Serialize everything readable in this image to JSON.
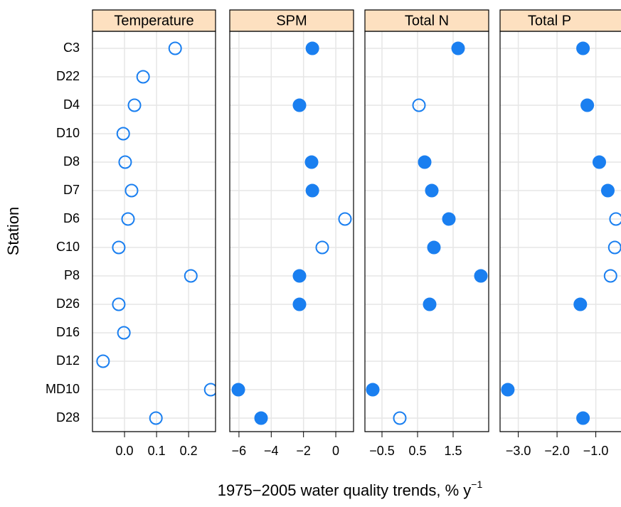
{
  "axis_labels": {
    "x": "1975−2005 water quality trends, % y",
    "x_sup": "−1",
    "y": "Station"
  },
  "chart_data": [
    {
      "type": "dot",
      "title": "Temperature",
      "color": "#1a7ff0",
      "categories": [
        "C3",
        "D22",
        "D4",
        "D10",
        "D8",
        "D7",
        "D6",
        "C10",
        "P8",
        "D26",
        "D16",
        "D12",
        "MD10",
        "D28"
      ],
      "values": [
        0.158,
        0.058,
        0.031,
        -0.004,
        0.002,
        0.022,
        0.011,
        -0.018,
        0.207,
        -0.018,
        -0.002,
        -0.067,
        0.269,
        0.098
      ],
      "filled": [
        false,
        false,
        false,
        false,
        false,
        false,
        false,
        false,
        false,
        false,
        false,
        false,
        false,
        false
      ],
      "xlim": [
        -0.1,
        0.284
      ],
      "xticks": [
        {
          "value": 0,
          "label": "0.0"
        },
        0.1,
        0.2
      ]
    },
    {
      "type": "dot",
      "title": "SPM",
      "color": "#1a7ff0",
      "categories": [
        "C3",
        "D22",
        "D4",
        "D10",
        "D8",
        "D7",
        "D6",
        "C10",
        "P8",
        "D26",
        "D16",
        "D12",
        "MD10",
        "D28"
      ],
      "values": [
        -1.45,
        null,
        -2.25,
        null,
        -1.5,
        -1.45,
        0.57,
        -0.84,
        -2.25,
        -2.25,
        null,
        null,
        -6.04,
        -4.63
      ],
      "filled": [
        true,
        null,
        true,
        null,
        true,
        true,
        false,
        false,
        true,
        true,
        null,
        null,
        true,
        true
      ],
      "xlim": [
        -6.57,
        1.1
      ],
      "xticks": [
        {
          "value": -6,
          "label": "−6"
        },
        {
          "value": -4,
          "label": "−4"
        },
        {
          "value": -2,
          "label": "−2"
        },
        0
      ]
    },
    {
      "type": "dot",
      "title": "Total N",
      "color": "#1a7ff0",
      "categories": [
        "C3",
        "D22",
        "D4",
        "D10",
        "D8",
        "D7",
        "D6",
        "C10",
        "P8",
        "D26",
        "D16",
        "D12",
        "MD10",
        "D28"
      ],
      "values": [
        1.64,
        null,
        0.54,
        null,
        0.7,
        0.9,
        1.38,
        0.96,
        2.28,
        0.84,
        null,
        null,
        -0.76,
        0
      ],
      "filled": [
        true,
        null,
        false,
        null,
        true,
        true,
        true,
        true,
        true,
        true,
        null,
        null,
        true,
        false
      ],
      "xlim": [
        -0.98,
        2.5
      ],
      "xticks": [
        {
          "value": -0.5,
          "label": "−0.5"
        },
        0.5,
        1.5
      ]
    },
    {
      "type": "dot",
      "title": "Total P",
      "color": "#1a7ff0",
      "categories": [
        "C3",
        "D22",
        "D4",
        "D10",
        "D8",
        "D7",
        "D6",
        "C10",
        "P8",
        "D26",
        "D16",
        "D12",
        "MD10",
        "D28"
      ],
      "values": [
        -1.33,
        null,
        -1.22,
        null,
        -0.91,
        -0.69,
        -0.48,
        -0.51,
        -0.62,
        -1.4,
        null,
        null,
        -3.27,
        -1.33
      ],
      "filled": [
        true,
        null,
        true,
        null,
        true,
        true,
        false,
        false,
        false,
        true,
        null,
        null,
        true,
        true
      ],
      "xlim": [
        -3.47,
        -0.35
      ],
      "xticks": [
        {
          "value": -3,
          "label": "−3.0"
        },
        {
          "value": -2,
          "label": "−2.0"
        },
        {
          "value": -1,
          "label": "−1.0"
        }
      ]
    }
  ]
}
